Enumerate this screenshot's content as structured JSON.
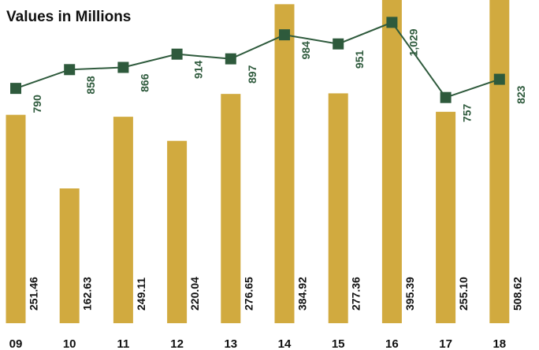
{
  "chart_data": {
    "type": "bar-line",
    "title": "Values in Millions",
    "categories": [
      "09",
      "10",
      "11",
      "12",
      "13",
      "14",
      "15",
      "16",
      "17",
      "18"
    ],
    "series": [
      {
        "type": "bar",
        "color": "#d1aa3f",
        "values": [
          251.46,
          162.63,
          249.11,
          220.04,
          276.65,
          384.92,
          277.36,
          395.39,
          255.1,
          508.62
        ],
        "value_labels": [
          "251.46",
          "162.63",
          "249.11",
          "220.04",
          "276.65",
          "384.92",
          "277.36",
          "395.39",
          "255.10",
          "508.62"
        ]
      },
      {
        "type": "line",
        "axis": "y2",
        "color": "#2e5a3c",
        "values": [
          790,
          858,
          866,
          914,
          897,
          984,
          951,
          1029,
          757,
          823
        ],
        "value_labels": [
          "790",
          "858",
          "866",
          "914",
          "897",
          "984",
          "951",
          "1,029",
          "757",
          "823"
        ]
      }
    ],
    "ylim": [
      0,
      390
    ],
    "y2lim": [
      -60,
      1110
    ]
  }
}
